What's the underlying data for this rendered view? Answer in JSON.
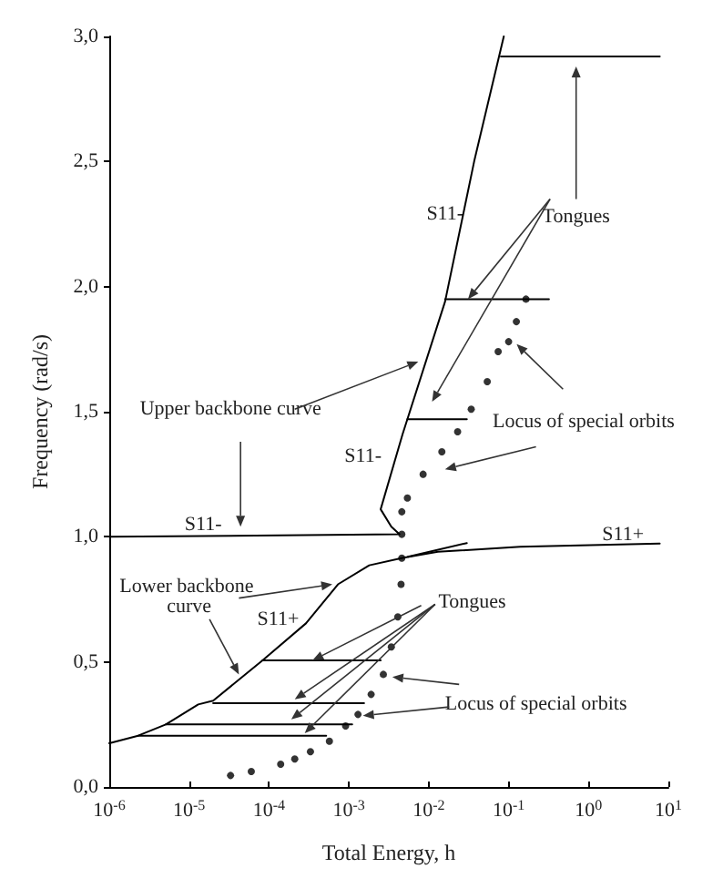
{
  "chart_data": {
    "type": "line",
    "xlabel": "Total Energy, h",
    "ylabel": "Frequency (rad/s)",
    "log": "x",
    "xlim": [
      1e-06,
      10
    ],
    "ylim": [
      0,
      3
    ],
    "xticks": [
      {
        "value": 1e-06,
        "label": "10$^{-6}$"
      },
      {
        "value": 1e-05,
        "label": "10$^{-5}$"
      },
      {
        "value": 0.0001,
        "label": "10$^{-4}$"
      },
      {
        "value": 0.001,
        "label": "10$^{-3}$"
      },
      {
        "value": 0.01,
        "label": "10$^{-2}$"
      },
      {
        "value": 0.1,
        "label": "10$^{-1}$"
      },
      {
        "value": 1,
        "label": "10$^{0}$"
      },
      {
        "value": 10,
        "label": "10$^{1}$"
      }
    ],
    "yticks": [
      {
        "value": 0,
        "label": "0,0"
      },
      {
        "value": 0.5,
        "label": "0,5"
      },
      {
        "value": 1,
        "label": "1,0"
      },
      {
        "value": 1.5,
        "label": "1,5"
      },
      {
        "value": 2,
        "label": "2,0"
      },
      {
        "value": 2.5,
        "label": "2,5"
      },
      {
        "value": 3,
        "label": "3,0"
      }
    ],
    "marker": "none",
    "line_style": "solid",
    "series": [
      {
        "color": "#000000",
        "x": [
          1e-06,
          0.0043,
          0.0034,
          0.0025,
          0.0047,
          0.0054,
          0.016,
          0.037,
          0.087
        ],
        "values": [
          1.0,
          1.01,
          1.04,
          1.11,
          1.41,
          1.47,
          1.94,
          2.5,
          3.0
        ]
      },
      {
        "color": "#000000",
        "x": [
          1e-06,
          2.3e-06,
          5.1e-06,
          1.3e-05,
          2e-05,
          8.3e-05,
          0.00029,
          0.00073,
          0.0018,
          0.0047,
          0.013,
          0.14,
          7.8
        ],
        "values": [
          0.175,
          0.205,
          0.25,
          0.33,
          0.345,
          0.506,
          0.654,
          0.81,
          0.886,
          0.916,
          0.94,
          0.96,
          0.973
        ]
      },
      {
        "color": "#000000",
        "x": [
          0.08,
          7.8
        ],
        "values": [
          2.92,
          2.92
        ]
      },
      {
        "color": "#000000",
        "x": [
          0.016,
          0.32
        ],
        "values": [
          1.95,
          1.95
        ]
      },
      {
        "color": "#000000",
        "x": [
          0.0054,
          0.03
        ],
        "values": [
          1.47,
          1.47
        ]
      },
      {
        "color": "#000000",
        "x": [
          0.0055,
          0.03
        ],
        "values": [
          0.92,
          0.975
        ]
      },
      {
        "color": "#000000",
        "x": [
          8.3e-05,
          0.0025
        ],
        "values": [
          0.506,
          0.506
        ]
      },
      {
        "color": "#000000",
        "x": [
          2e-05,
          0.00155
        ],
        "values": [
          0.335,
          0.335
        ]
      },
      {
        "color": "#000000",
        "x": [
          5.1e-06,
          0.0011
        ],
        "values": [
          0.25,
          0.25
        ]
      },
      {
        "color": "#000000",
        "x": [
          2.3e-06,
          0.00052
        ],
        "values": [
          0.205,
          0.205
        ]
      },
      {
        "type": "scatter",
        "marker": "circle",
        "color": "#000000",
        "x": [
          3.3e-05,
          6e-05,
          0.00014,
          0.00021,
          0.00033,
          0.00057,
          0.00091,
          0.0013,
          0.0019,
          0.0027,
          0.0034,
          0.0041,
          0.0045,
          0.0046,
          0.0046,
          0.0046,
          0.0054,
          0.0085,
          0.0146,
          0.023,
          0.034,
          0.054,
          0.074,
          0.1,
          0.125,
          0.165
        ],
        "values": [
          0.046,
          0.062,
          0.091,
          0.112,
          0.141,
          0.183,
          0.244,
          0.29,
          0.37,
          0.45,
          0.56,
          0.68,
          0.81,
          0.915,
          1.01,
          1.1,
          1.155,
          1.25,
          1.34,
          1.42,
          1.51,
          1.62,
          1.74,
          1.78,
          1.86,
          1.95
        ]
      }
    ],
    "annotations": [
      "Tongues",
      "S11-",
      "Upper backbone curve",
      "Locus of special orbits",
      "S11-",
      "S11-",
      "S11+",
      "Lower backbone curve",
      "S11+",
      {
        "text": "Tongues",
        "x": 0.00035,
        "y": 0.506
      },
      "Locus of special orbits"
    ]
  }
}
